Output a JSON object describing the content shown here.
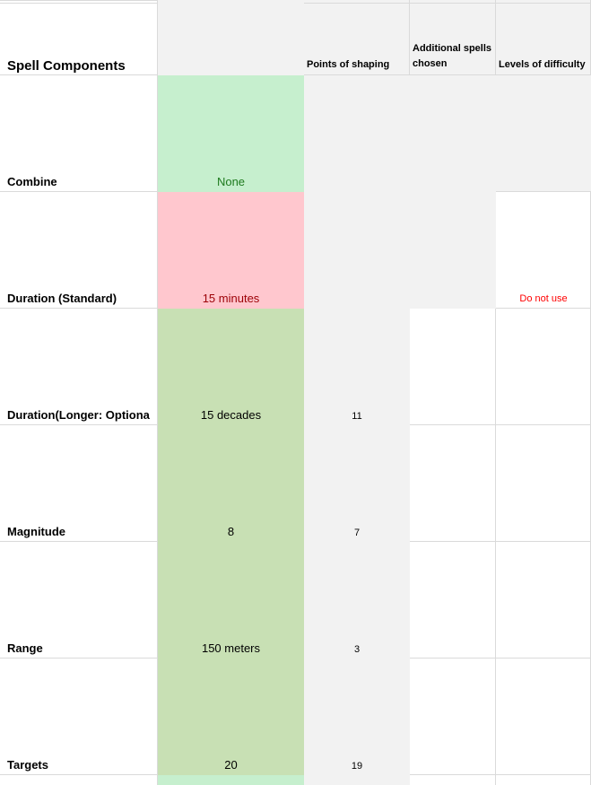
{
  "header": {
    "title": "Spell Components",
    "col_c": "Points of shaping",
    "col_d_line1": "Additional spells",
    "col_d_line2": "chosen",
    "col_e": "Levels of difficulty"
  },
  "rows": [
    {
      "label": "Combine",
      "value": "None",
      "points": "",
      "difficulty": ""
    },
    {
      "label": "Duration (Standard)",
      "value": "15 minutes",
      "points": "",
      "difficulty": "Do not use"
    },
    {
      "label": "Duration(Longer: Optiona",
      "value": "15 decades",
      "points": "11",
      "difficulty": ""
    },
    {
      "label": "Magnitude",
      "value": "8",
      "points": "7",
      "difficulty": ""
    },
    {
      "label": "Range",
      "value": "150 meters",
      "points": "3",
      "difficulty": ""
    },
    {
      "label": "Targets",
      "value": "20",
      "points": "19",
      "difficulty": ""
    }
  ],
  "colors": {
    "header_fill": "#f2f2f2",
    "value_green": "#c8e0b4",
    "combine_fill": "#c6efce",
    "combine_text": "#1e7a1e",
    "duration_fill": "#ffc7ce",
    "duration_text": "#9c0006",
    "warning_text": "#ff0000"
  }
}
